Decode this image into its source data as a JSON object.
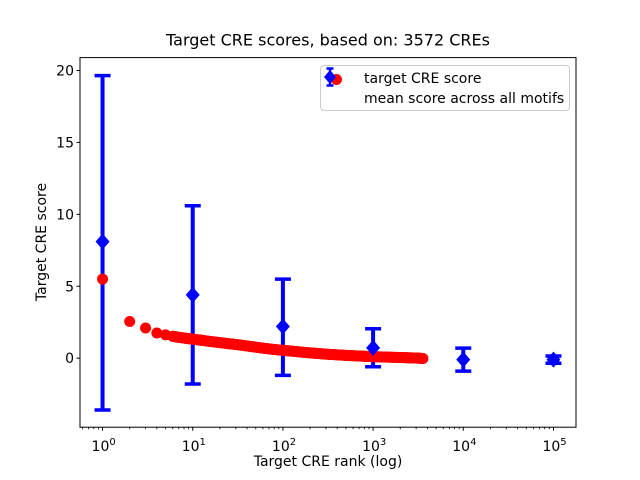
{
  "chart_data": {
    "type": "scatter",
    "title": "Target CRE scores, based on: 3572 CREs",
    "xlabel": "Target CRE rank (log)",
    "ylabel": "Target CRE score",
    "x_scale": "log",
    "xlim": [
      0.5623,
      177828
    ],
    "ylim": [
      -4.8,
      20.9
    ],
    "grid": false,
    "x_tick_base": "10",
    "x_tick_exponents": [
      "0",
      "1",
      "2",
      "3",
      "4",
      "5"
    ],
    "y_ticks": [
      "0",
      "5",
      "10",
      "15",
      "20"
    ],
    "colors": {
      "target": "#ff0000",
      "mean": "#0000ff",
      "legend_border": "#cccccc",
      "axes": "#000000"
    },
    "legend": [
      {
        "label": "target CRE score",
        "marker": "circle",
        "color": "#ff0000"
      },
      {
        "label": "mean score across all motifs",
        "marker": "diamond-errorbar",
        "color": "#0000ff"
      }
    ],
    "series": [
      {
        "name": "target CRE score",
        "type": "scatter",
        "marker": "circle",
        "color": "#ff0000",
        "points": [
          [
            1,
            5.5
          ],
          [
            2,
            2.55
          ],
          [
            3,
            2.1
          ],
          [
            4,
            1.75
          ],
          [
            5,
            1.62
          ],
          [
            6,
            1.52
          ],
          [
            7,
            1.45
          ],
          [
            8,
            1.4
          ],
          [
            9,
            1.36
          ],
          [
            10,
            1.32
          ],
          [
            12,
            1.26
          ],
          [
            15,
            1.18
          ],
          [
            19,
            1.1
          ],
          [
            24,
            1.02
          ],
          [
            30,
            0.95
          ],
          [
            38,
            0.87
          ],
          [
            48,
            0.78
          ],
          [
            60,
            0.7
          ],
          [
            76,
            0.62
          ],
          [
            95,
            0.56
          ],
          [
            120,
            0.5
          ],
          [
            150,
            0.44
          ],
          [
            190,
            0.38
          ],
          [
            240,
            0.33
          ],
          [
            300,
            0.28
          ],
          [
            380,
            0.24
          ],
          [
            480,
            0.2
          ],
          [
            600,
            0.17
          ],
          [
            760,
            0.14
          ],
          [
            950,
            0.11
          ],
          [
            1200,
            0.09
          ],
          [
            1500,
            0.07
          ],
          [
            1900,
            0.05
          ],
          [
            2400,
            0.03
          ],
          [
            3000,
            0.01
          ],
          [
            3572,
            -0.02
          ]
        ]
      },
      {
        "name": "mean score across all motifs",
        "type": "errorbar",
        "marker": "diamond",
        "color": "#0000ff",
        "points": [
          {
            "x": 1,
            "y": 8.1,
            "lo": -3.6,
            "hi": 19.65
          },
          {
            "x": 10,
            "y": 4.4,
            "lo": -1.8,
            "hi": 10.6
          },
          {
            "x": 100,
            "y": 2.2,
            "lo": -1.2,
            "hi": 5.5
          },
          {
            "x": 1000,
            "y": 0.72,
            "lo": -0.6,
            "hi": 2.05
          },
          {
            "x": 10000,
            "y": -0.1,
            "lo": -0.9,
            "hi": 0.7
          },
          {
            "x": 100000,
            "y": -0.1,
            "lo": -0.35,
            "hi": 0.15
          }
        ]
      }
    ]
  }
}
